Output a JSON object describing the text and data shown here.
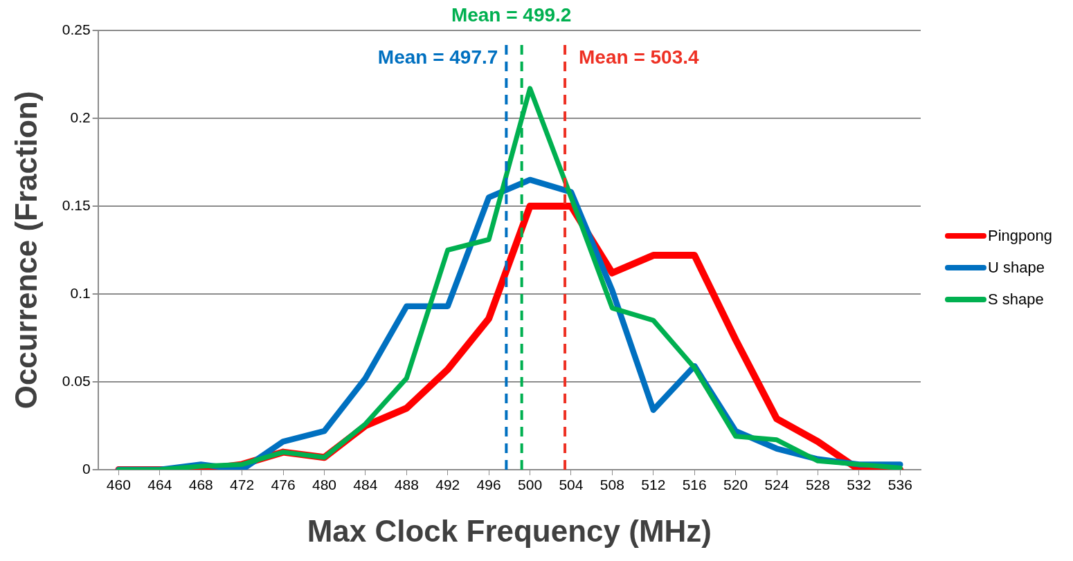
{
  "chart_data": {
    "type": "line",
    "xlabel": "Max Clock Frequency (MHz)",
    "ylabel": "Occurrence (Fraction)",
    "x": [
      460,
      464,
      468,
      472,
      476,
      480,
      484,
      488,
      492,
      496,
      500,
      504,
      508,
      512,
      516,
      520,
      524,
      528,
      532,
      536
    ],
    "xlim": [
      458,
      538
    ],
    "xticks": [
      460,
      464,
      468,
      472,
      476,
      480,
      484,
      488,
      492,
      496,
      500,
      504,
      508,
      512,
      516,
      520,
      524,
      528,
      532,
      536
    ],
    "ylim": [
      0,
      0.25
    ],
    "yticks": [
      0,
      0.05,
      0.1,
      0.15,
      0.2,
      0.25
    ],
    "grid": "y",
    "legend": "right",
    "marker": "none",
    "line_style": "solid",
    "series": [
      {
        "name": "Pingpong",
        "color": "#ff0000",
        "values": [
          0,
          0,
          0,
          0.003,
          0.01,
          0.007,
          0.025,
          0.035,
          0.057,
          0.086,
          0.15,
          0.15,
          0.112,
          0.122,
          0.122,
          0.074,
          0.029,
          0.016,
          0,
          0
        ]
      },
      {
        "name": "U shape",
        "color": "#0070c0",
        "values": [
          0,
          0,
          0.003,
          0,
          0.016,
          0.022,
          0.052,
          0.093,
          0.093,
          0.155,
          0.165,
          0.158,
          0.102,
          0.034,
          0.059,
          0.022,
          0.012,
          0.006,
          0.003,
          0.003
        ]
      },
      {
        "name": "S shape",
        "color": "#00b050",
        "values": [
          0,
          0,
          0.002,
          0.003,
          0.01,
          0.007,
          0.026,
          0.052,
          0.125,
          0.131,
          0.217,
          0.155,
          0.092,
          0.085,
          0.058,
          0.019,
          0.017,
          0.005,
          0.003,
          0.001
        ]
      }
    ],
    "ref_lines": [
      {
        "axis": "x",
        "value": 497.7,
        "label": "Mean = 497.7",
        "color": "#0070c0",
        "line_style": "dashed"
      },
      {
        "axis": "x",
        "value": 499.2,
        "label": "Mean = 499.2",
        "color": "#00b050",
        "line_style": "dashed"
      },
      {
        "axis": "x",
        "value": 503.4,
        "label": "Mean = 503.4",
        "color": "#ee3124",
        "line_style": "dashed"
      }
    ]
  }
}
